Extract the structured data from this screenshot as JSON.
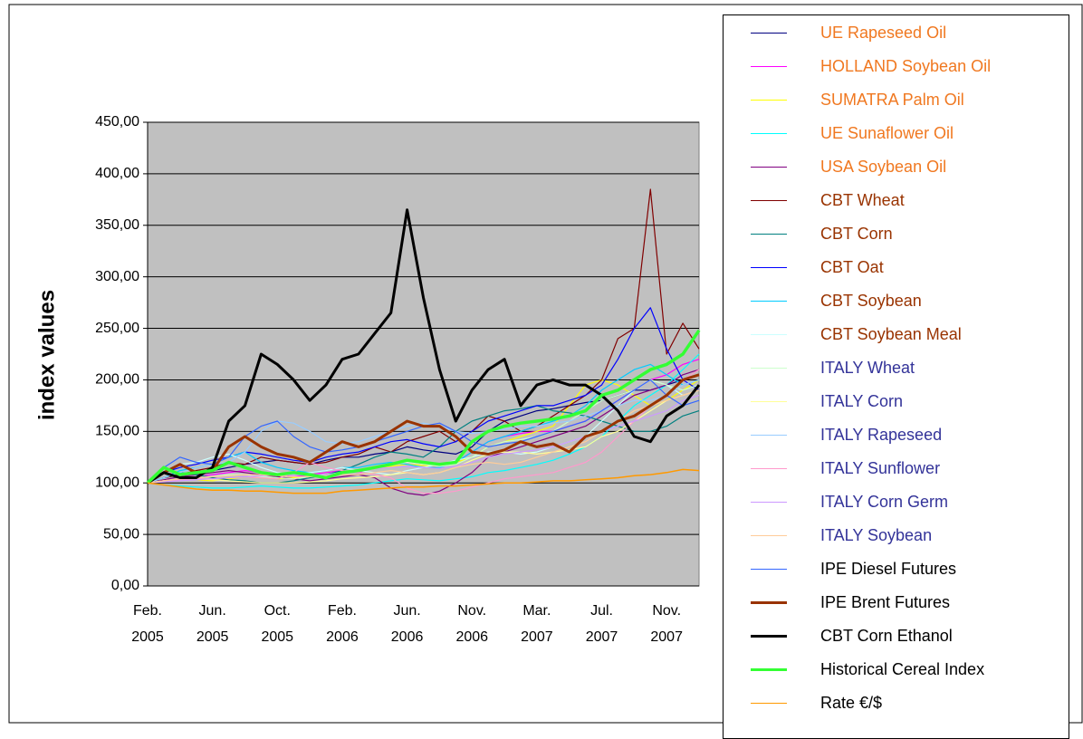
{
  "chart_data": {
    "type": "line",
    "y_label": "index values",
    "categories": [
      "Feb. 2005",
      null,
      null,
      null,
      "Jun. 2005",
      null,
      null,
      null,
      "Oct. 2005",
      null,
      null,
      null,
      "Feb. 2006",
      null,
      null,
      null,
      "Jun. 2006",
      null,
      null,
      null,
      "Nov. 2006",
      null,
      null,
      null,
      "Mar. 2007",
      null,
      null,
      null,
      "Jul. 2007",
      null,
      null,
      null,
      "Nov. 2007",
      null,
      null
    ],
    "ylim": [
      0,
      450
    ],
    "yticks": [
      {
        "value": 0,
        "label": "0,00"
      },
      {
        "value": 50,
        "label": "50,00"
      },
      {
        "value": 100,
        "label": "100,00"
      },
      {
        "value": 150,
        "label": "150,00"
      },
      {
        "value": 200,
        "label": "200,00"
      },
      {
        "value": 250,
        "label": "250,00"
      },
      {
        "value": 300,
        "label": "300,00"
      },
      {
        "value": 350,
        "label": "350,00"
      },
      {
        "value": 400,
        "label": "400,00"
      },
      {
        "value": 450,
        "label": "450,00"
      }
    ],
    "grid": true,
    "plot_background": "#c0c0c0",
    "series": [
      {
        "name": "UE Rapeseed Oil",
        "color": "#000080",
        "line_width": 1.2,
        "label_color": "#f07820",
        "values": [
          100,
          105,
          108,
          110,
          112,
          115,
          118,
          120,
          122,
          120,
          118,
          122,
          125,
          125,
          128,
          130,
          135,
          132,
          130,
          128,
          135,
          150,
          160,
          165,
          170,
          172,
          175,
          178,
          180,
          185,
          190,
          190,
          195,
          200,
          205
        ]
      },
      {
        "name": "HOLLAND Soybean Oil",
        "color": "#ff00ff",
        "line_width": 1.2,
        "label_color": "#f07820",
        "values": [
          100,
          102,
          104,
          106,
          108,
          110,
          112,
          110,
          108,
          106,
          108,
          110,
          112,
          110,
          115,
          118,
          120,
          118,
          115,
          120,
          130,
          140,
          145,
          148,
          150,
          150,
          155,
          160,
          170,
          180,
          190,
          200,
          205,
          215,
          220
        ]
      },
      {
        "name": "SUMATRA Palm Oil",
        "color": "#ffff00",
        "line_width": 1.2,
        "label_color": "#f07820",
        "values": [
          100,
          102,
          104,
          103,
          102,
          104,
          106,
          105,
          104,
          105,
          106,
          108,
          110,
          112,
          114,
          116,
          118,
          117,
          116,
          120,
          125,
          135,
          140,
          145,
          150,
          155,
          175,
          195,
          200,
          195,
          185,
          175,
          180,
          190,
          200
        ]
      },
      {
        "name": "UE Sunaflower Oil",
        "color": "#00ffff",
        "line_width": 1.2,
        "label_color": "#f07820",
        "values": [
          100,
          98,
          97,
          96,
          95,
          95,
          96,
          97,
          96,
          95,
          95,
          96,
          97,
          98,
          100,
          102,
          104,
          103,
          102,
          104,
          106,
          110,
          112,
          115,
          118,
          122,
          128,
          135,
          145,
          160,
          175,
          185,
          195,
          210,
          225
        ]
      },
      {
        "name": "USA Soybean Oil",
        "color": "#800080",
        "line_width": 1.2,
        "label_color": "#f07820",
        "values": [
          100,
          103,
          106,
          108,
          110,
          112,
          110,
          108,
          106,
          104,
          102,
          104,
          106,
          108,
          105,
          95,
          90,
          88,
          92,
          100,
          110,
          125,
          130,
          135,
          140,
          145,
          150,
          155,
          165,
          175,
          185,
          190,
          195,
          205,
          210
        ]
      },
      {
        "name": "CBT Wheat",
        "color": "#800000",
        "line_width": 1.2,
        "label_color": "#993300",
        "values": [
          100,
          105,
          108,
          112,
          115,
          120,
          118,
          125,
          122,
          120,
          118,
          120,
          125,
          128,
          135,
          130,
          140,
          145,
          150,
          140,
          150,
          165,
          160,
          150,
          155,
          165,
          175,
          185,
          200,
          240,
          250,
          385,
          225,
          255,
          230
        ]
      },
      {
        "name": "CBT Corn",
        "color": "#008080",
        "line_width": 1.2,
        "label_color": "#993300",
        "values": [
          100,
          105,
          110,
          108,
          105,
          103,
          102,
          100,
          100,
          102,
          105,
          108,
          112,
          118,
          125,
          130,
          128,
          125,
          135,
          150,
          160,
          165,
          170,
          172,
          175,
          170,
          168,
          165,
          160,
          155,
          150,
          150,
          155,
          165,
          170
        ]
      },
      {
        "name": "CBT Oat",
        "color": "#0000ff",
        "line_width": 1.2,
        "label_color": "#993300",
        "values": [
          100,
          110,
          115,
          118,
          122,
          125,
          130,
          128,
          125,
          122,
          120,
          125,
          128,
          130,
          135,
          140,
          142,
          138,
          135,
          140,
          150,
          160,
          165,
          170,
          175,
          175,
          180,
          185,
          195,
          220,
          250,
          270,
          230,
          200,
          190
        ]
      },
      {
        "name": "CBT Soybean",
        "color": "#00ccff",
        "line_width": 1.2,
        "label_color": "#993300",
        "values": [
          100,
          105,
          112,
          115,
          118,
          125,
          130,
          120,
          115,
          112,
          110,
          112,
          115,
          115,
          118,
          120,
          118,
          115,
          115,
          120,
          130,
          140,
          145,
          150,
          155,
          160,
          165,
          175,
          190,
          200,
          210,
          215,
          205,
          195,
          200
        ]
      },
      {
        "name": "CBT Soybean Meal",
        "color": "#ccffff",
        "line_width": 1.2,
        "label_color": "#993300",
        "values": [
          100,
          110,
          118,
          120,
          125,
          128,
          122,
          115,
          110,
          108,
          110,
          112,
          115,
          112,
          110,
          108,
          112,
          115,
          118,
          122,
          125,
          130,
          130,
          128,
          130,
          135,
          140,
          145,
          160,
          175,
          190,
          200,
          195,
          185,
          190
        ]
      },
      {
        "name": "ITALY Wheat",
        "color": "#ccffcc",
        "line_width": 1.2,
        "label_color": "#333399",
        "values": [
          100,
          102,
          104,
          105,
          106,
          108,
          108,
          106,
          105,
          104,
          106,
          108,
          110,
          112,
          115,
          118,
          120,
          118,
          116,
          118,
          125,
          135,
          140,
          142,
          145,
          150,
          160,
          170,
          180,
          185,
          190,
          200,
          195,
          190,
          195
        ]
      },
      {
        "name": "ITALY Corn",
        "color": "#ffff99",
        "line_width": 1.2,
        "label_color": "#333399",
        "values": [
          100,
          102,
          104,
          104,
          103,
          102,
          101,
          100,
          100,
          100,
          101,
          102,
          104,
          105,
          106,
          108,
          110,
          108,
          110,
          115,
          122,
          128,
          130,
          130,
          128,
          130,
          132,
          135,
          145,
          150,
          160,
          170,
          180,
          185,
          190
        ]
      },
      {
        "name": "ITALY Rapeseed",
        "color": "#99ccff",
        "line_width": 1.2,
        "label_color": "#333399",
        "values": [
          100,
          105,
          110,
          115,
          118,
          120,
          130,
          150,
          160,
          158,
          150,
          140,
          138,
          140,
          145,
          150,
          155,
          158,
          155,
          150,
          148,
          150,
          152,
          155,
          155,
          158,
          160,
          165,
          170,
          175,
          180,
          180,
          185,
          195,
          200
        ]
      },
      {
        "name": "ITALY Sunflower",
        "color": "#ff99cc",
        "line_width": 1.2,
        "label_color": "#333399",
        "values": [
          100,
          102,
          103,
          104,
          104,
          105,
          106,
          105,
          104,
          110,
          120,
          115,
          112,
          110,
          108,
          105,
          95,
          90,
          90,
          92,
          96,
          100,
          104,
          106,
          108,
          110,
          115,
          120,
          130,
          145,
          160,
          175,
          185,
          200,
          210
        ]
      },
      {
        "name": "ITALY Corn Germ",
        "color": "#cc99ff",
        "line_width": 1.2,
        "label_color": "#333399",
        "values": [
          100,
          101,
          102,
          103,
          104,
          105,
          106,
          107,
          108,
          108,
          108,
          108,
          110,
          112,
          114,
          115,
          116,
          115,
          114,
          116,
          120,
          125,
          128,
          130,
          132,
          135,
          140,
          145,
          150,
          155,
          160,
          165,
          170,
          180,
          185
        ]
      },
      {
        "name": "ITALY Soybean",
        "color": "#ffcc99",
        "line_width": 1.2,
        "label_color": "#333399",
        "values": [
          100,
          102,
          104,
          105,
          106,
          107,
          108,
          108,
          107,
          106,
          106,
          107,
          108,
          108,
          110,
          112,
          110,
          108,
          110,
          115,
          118,
          120,
          118,
          120,
          125,
          130,
          135,
          140,
          150,
          160,
          170,
          175,
          180,
          185,
          190
        ]
      },
      {
        "name": "IPE Diesel Futures",
        "color": "#3366ff",
        "line_width": 1.2,
        "label_color": "#000000",
        "values": [
          100,
          115,
          125,
          120,
          118,
          125,
          145,
          155,
          160,
          145,
          135,
          130,
          132,
          135,
          140,
          145,
          150,
          155,
          158,
          150,
          140,
          135,
          138,
          140,
          145,
          150,
          155,
          160,
          170,
          180,
          190,
          200,
          185,
          175,
          180
        ]
      },
      {
        "name": "IPE Brent Futures",
        "color": "#993300",
        "line_width": 3,
        "label_color": "#000000",
        "values": [
          100,
          110,
          118,
          110,
          112,
          135,
          145,
          135,
          128,
          125,
          120,
          130,
          140,
          135,
          140,
          150,
          160,
          155,
          155,
          145,
          130,
          128,
          132,
          140,
          135,
          138,
          130,
          145,
          150,
          160,
          165,
          175,
          185,
          200,
          205
        ]
      },
      {
        "name": "CBT Corn Ethanol",
        "color": "#000000",
        "line_width": 3,
        "label_color": "#000000",
        "values": [
          100,
          110,
          105,
          105,
          115,
          160,
          175,
          225,
          215,
          200,
          180,
          195,
          220,
          225,
          245,
          265,
          365,
          280,
          210,
          160,
          190,
          210,
          220,
          175,
          195,
          200,
          195,
          195,
          185,
          170,
          145,
          140,
          165,
          175,
          195
        ]
      },
      {
        "name": "Historical Cereal Index",
        "color": "#33ff33",
        "line_width": 3.5,
        "label_color": "#000000",
        "values": [
          100,
          115,
          108,
          110,
          112,
          120,
          115,
          110,
          108,
          110,
          108,
          105,
          110,
          112,
          115,
          118,
          122,
          120,
          118,
          120,
          140,
          150,
          155,
          158,
          160,
          162,
          165,
          170,
          185,
          190,
          200,
          210,
          215,
          225,
          248
        ]
      },
      {
        "name": "Rate €/$",
        "color": "#ff9900",
        "line_width": 1.5,
        "label_color": "#000000",
        "values": [
          100,
          98,
          96,
          94,
          93,
          93,
          92,
          92,
          91,
          90,
          90,
          90,
          92,
          93,
          94,
          95,
          96,
          96,
          97,
          97,
          98,
          99,
          100,
          100,
          101,
          102,
          102,
          103,
          104,
          105,
          107,
          108,
          110,
          113,
          112
        ]
      }
    ]
  }
}
